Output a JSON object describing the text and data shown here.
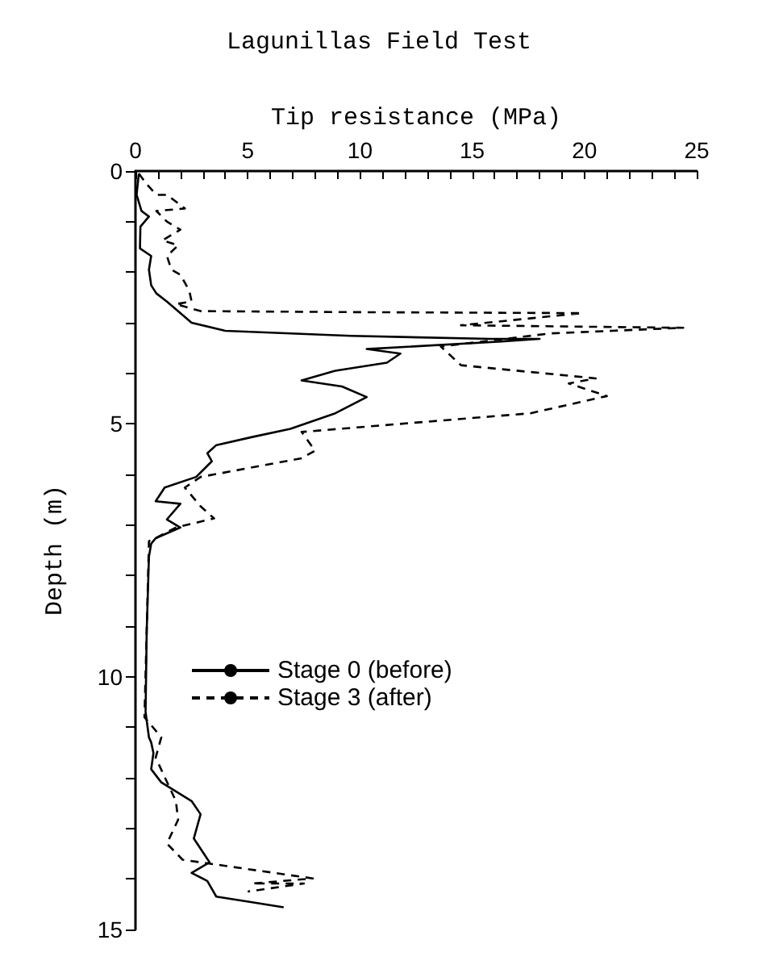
{
  "chart_data": {
    "type": "line",
    "title": "Lagunillas Field Test",
    "xlabel": "Tip resistance (MPa)",
    "ylabel": "Depth (m)",
    "xlim": [
      0,
      25
    ],
    "xticks": [
      0,
      {
        "value": 1,
        "label": null
      },
      {
        "value": 2,
        "label": null
      },
      {
        "value": 3,
        "label": null
      },
      {
        "value": 4,
        "label": null
      },
      5,
      {
        "value": 6,
        "label": null
      },
      {
        "value": 7,
        "label": null
      },
      {
        "value": 8,
        "label": null
      },
      {
        "value": 9,
        "label": null
      },
      10,
      {
        "value": 11,
        "label": null
      },
      {
        "value": 12,
        "label": null
      },
      {
        "value": 13,
        "label": null
      },
      {
        "value": 14,
        "label": null
      },
      15,
      {
        "value": 16,
        "label": null
      },
      {
        "value": 17,
        "label": null
      },
      {
        "value": 18,
        "label": null
      },
      {
        "value": 19,
        "label": null
      },
      20,
      {
        "value": 21,
        "label": null
      },
      {
        "value": 22,
        "label": null
      },
      {
        "value": 23,
        "label": null
      },
      {
        "value": 24,
        "label": null
      },
      25
    ],
    "ylim": [
      15,
      0
    ],
    "yticks": [
      0,
      {
        "value": 1,
        "label": null
      },
      {
        "value": 2,
        "label": null
      },
      {
        "value": 3,
        "label": null
      },
      {
        "value": 4,
        "label": null
      },
      5,
      {
        "value": 6,
        "label": null
      },
      {
        "value": 7,
        "label": null
      },
      {
        "value": 8,
        "label": null
      },
      {
        "value": 9,
        "label": null
      },
      10,
      {
        "value": 11,
        "label": null
      },
      {
        "value": 12,
        "label": null
      },
      {
        "value": 13,
        "label": null
      },
      {
        "value": 14,
        "label": null
      },
      15
    ],
    "grid": false,
    "legend": "left",
    "marker": "none",
    "series": [
      {
        "name": "Stage 0 (before)",
        "color": "#000000",
        "line_style": "solid",
        "x": [
          0.15,
          0.05,
          0.27,
          0.6,
          0.22,
          0.2,
          0.7,
          0.6,
          0.7,
          0.93,
          1.4,
          2.5,
          4.0,
          9.6,
          15.8,
          18.0,
          16.3,
          10.3,
          11.8,
          11.2,
          8.9,
          7.4,
          9.2,
          10.3,
          8.9,
          6.9,
          5.2,
          3.6,
          3.2,
          3.4,
          2.7,
          1.3,
          0.9,
          2.0,
          1.4,
          2.0,
          0.9,
          0.7,
          0.6,
          0.5,
          0.45,
          0.6,
          0.7,
          0.8,
          0.7,
          1.15,
          2.5,
          2.9,
          2.6,
          3.3,
          2.5,
          3.2,
          3.6,
          5.2,
          6.6
        ],
        "values": [
          0.05,
          0.47,
          0.79,
          0.9,
          1.1,
          1.53,
          1.68,
          1.95,
          2.26,
          2.42,
          2.58,
          3.0,
          3.16,
          3.26,
          3.32,
          3.32,
          3.37,
          3.52,
          3.61,
          3.79,
          3.95,
          4.14,
          4.26,
          4.47,
          4.79,
          5.1,
          5.26,
          5.42,
          5.58,
          5.74,
          6.05,
          6.26,
          6.53,
          6.58,
          6.89,
          7.05,
          7.26,
          7.37,
          7.63,
          9.1,
          10.7,
          11.2,
          11.3,
          11.51,
          11.83,
          12.09,
          12.46,
          12.72,
          13.2,
          13.67,
          13.88,
          14.04,
          14.35,
          14.46,
          14.56
        ]
      },
      {
        "name": "Stage 3 (after)",
        "color": "#000000",
        "line_style": "dashed",
        "x": [
          0.15,
          0.5,
          0.93,
          1.4,
          2.2,
          0.93,
          1.4,
          2.0,
          1.2,
          1.9,
          1.4,
          1.6,
          2.0,
          2.4,
          2.5,
          1.8,
          2.9,
          9.6,
          19.9,
          14.5,
          24.4,
          18.5,
          13.6,
          14.5,
          20.5,
          19.3,
          21.0,
          17.6,
          11.8,
          7.4,
          8.0,
          7.4,
          2.9,
          2.2,
          2.9,
          3.5,
          1.8,
          0.9,
          0.6,
          0.5,
          0.4,
          1.15,
          0.9,
          1.8,
          1.9,
          1.4,
          2.1,
          7.9,
          5.2,
          7.5,
          5.0
        ],
        "values": [
          0.05,
          0.26,
          0.47,
          0.47,
          0.74,
          0.79,
          1.0,
          1.16,
          1.37,
          1.47,
          1.68,
          1.95,
          2.05,
          2.37,
          2.58,
          2.63,
          2.77,
          2.79,
          2.81,
          3.05,
          3.1,
          3.21,
          3.47,
          3.84,
          4.1,
          4.2,
          4.45,
          4.79,
          5.0,
          5.16,
          5.53,
          5.68,
          6.05,
          6.26,
          6.63,
          6.87,
          7.05,
          7.26,
          7.32,
          9.1,
          10.8,
          11.2,
          11.6,
          12.46,
          12.83,
          13.3,
          13.62,
          13.99,
          14.09,
          14.09,
          14.25
        ]
      }
    ]
  }
}
